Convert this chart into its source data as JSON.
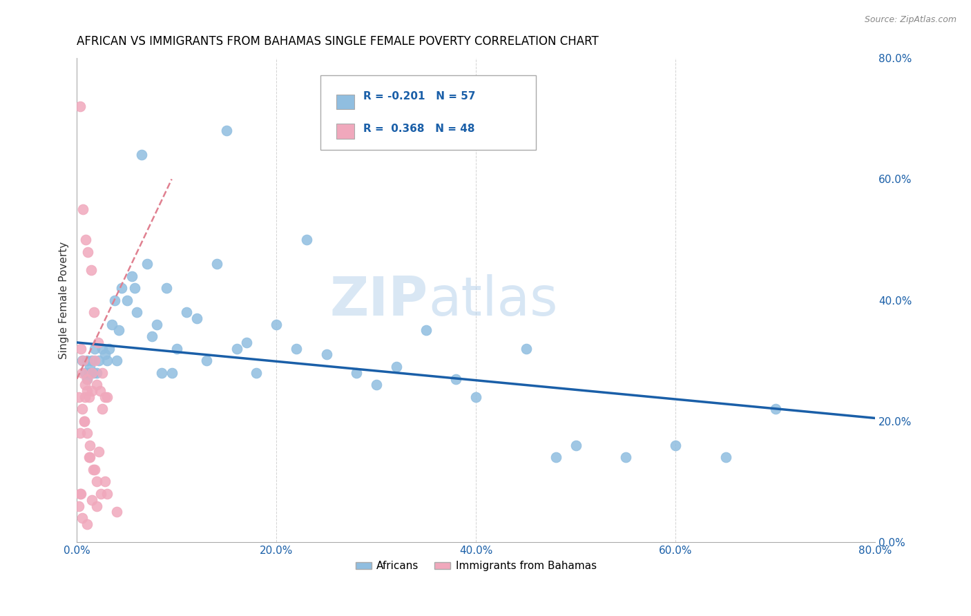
{
  "title": "AFRICAN VS IMMIGRANTS FROM BAHAMAS SINGLE FEMALE POVERTY CORRELATION CHART",
  "source": "Source: ZipAtlas.com",
  "ylabel": "Single Female Poverty",
  "legend_label1": "Africans",
  "legend_label2": "Immigrants from Bahamas",
  "r1": "-0.201",
  "n1": "57",
  "r2": "0.368",
  "n2": "48",
  "blue_color": "#90BEE0",
  "pink_color": "#F0A8BC",
  "trend_blue": "#1A5FA8",
  "trend_pink": "#E08090",
  "watermark_zip": "ZIP",
  "watermark_atlas": "atlas",
  "africans_x": [
    1.0,
    1.5,
    2.0,
    2.5,
    3.0,
    3.5,
    4.0,
    4.5,
    5.0,
    5.5,
    6.0,
    7.0,
    8.0,
    9.0,
    10.0,
    11.0,
    12.0,
    13.0,
    14.0,
    15.0,
    16.0,
    17.0,
    18.0,
    20.0,
    22.0,
    25.0,
    28.0,
    30.0,
    32.0,
    35.0,
    38.0,
    40.0,
    45.0,
    50.0,
    55.0,
    60.0,
    65.0,
    70.0,
    0.5,
    0.8,
    1.2,
    1.8,
    2.2,
    2.8,
    3.2,
    6.5,
    7.5,
    9.5,
    23.0,
    1.0,
    1.3,
    1.6,
    4.2,
    8.5,
    3.8,
    5.8,
    48.0
  ],
  "africans_y": [
    30.0,
    30.0,
    28.0,
    32.0,
    30.0,
    36.0,
    30.0,
    42.0,
    40.0,
    44.0,
    38.0,
    46.0,
    36.0,
    42.0,
    32.0,
    38.0,
    37.0,
    30.0,
    46.0,
    68.0,
    32.0,
    33.0,
    28.0,
    36.0,
    32.0,
    31.0,
    28.0,
    26.0,
    29.0,
    35.0,
    27.0,
    24.0,
    32.0,
    16.0,
    14.0,
    16.0,
    14.0,
    22.0,
    30.0,
    28.0,
    28.0,
    32.0,
    30.0,
    31.0,
    32.0,
    64.0,
    34.0,
    28.0,
    50.0,
    27.0,
    29.0,
    28.0,
    35.0,
    28.0,
    40.0,
    42.0,
    14.0
  ],
  "bahamas_x": [
    0.5,
    0.8,
    1.0,
    1.2,
    1.5,
    1.8,
    2.0,
    2.3,
    2.8,
    0.3,
    0.6,
    0.9,
    1.1,
    1.4,
    1.7,
    2.1,
    2.5,
    3.0,
    0.3,
    0.5,
    0.7,
    1.0,
    1.3,
    1.6,
    2.0,
    2.4,
    3.0,
    4.0,
    0.2,
    0.8,
    1.5,
    2.5,
    0.4,
    0.6,
    1.0,
    1.2,
    1.8,
    2.2,
    0.3,
    0.5,
    1.0,
    1.5,
    2.0,
    0.7,
    1.3,
    2.8,
    0.2,
    0.4
  ],
  "bahamas_y": [
    28.0,
    26.0,
    25.0,
    24.0,
    28.0,
    30.0,
    26.0,
    25.0,
    24.0,
    72.0,
    55.0,
    50.0,
    48.0,
    45.0,
    38.0,
    33.0,
    28.0,
    24.0,
    18.0,
    22.0,
    20.0,
    18.0,
    14.0,
    12.0,
    10.0,
    8.0,
    8.0,
    5.0,
    24.0,
    24.0,
    25.0,
    22.0,
    32.0,
    30.0,
    27.0,
    14.0,
    12.0,
    15.0,
    8.0,
    4.0,
    3.0,
    7.0,
    6.0,
    20.0,
    16.0,
    10.0,
    6.0,
    8.0
  ],
  "xlim": [
    0,
    80
  ],
  "ylim": [
    0,
    80
  ],
  "xticks": [
    0,
    20,
    40,
    60,
    80
  ],
  "yticks": [
    0,
    20,
    40,
    60,
    80
  ],
  "xticklabels": [
    "0.0%",
    "20.0%",
    "40.0%",
    "60.0%",
    "80.0%"
  ],
  "yticklabels": [
    "0.0%",
    "20.0%",
    "40.0%",
    "60.0%",
    "80.0%"
  ],
  "trend_blue_x0": 0,
  "trend_blue_x1": 80,
  "trend_blue_y0": 33.0,
  "trend_blue_y1": 20.5,
  "trend_pink_x0": 0,
  "trend_pink_x1": 9.5,
  "trend_pink_y0": 27.0,
  "trend_pink_y1": 60.0
}
